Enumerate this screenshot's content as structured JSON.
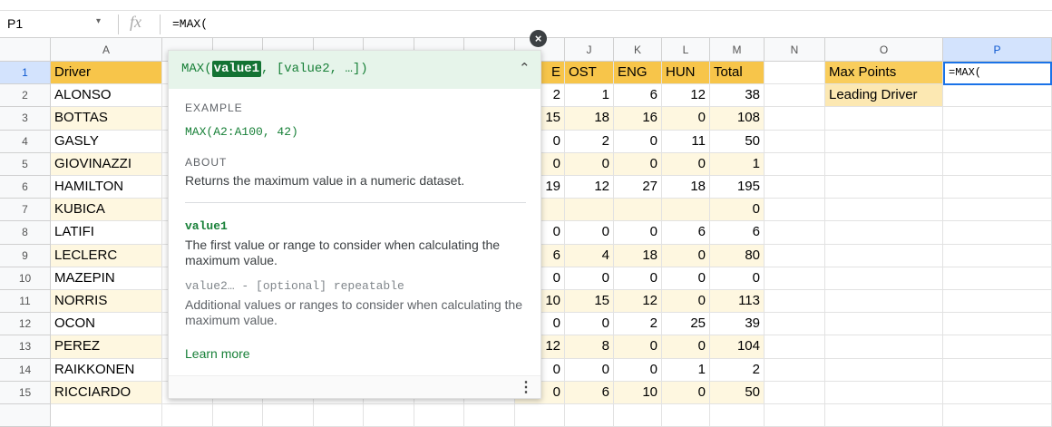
{
  "formula_bar": {
    "cell_ref": "P1",
    "formula": "=MAX("
  },
  "column_headers": [
    "A",
    "J",
    "K",
    "L",
    "M",
    "N",
    "O",
    "P"
  ],
  "row_numbers": [
    "1",
    "2",
    "3",
    "4",
    "5",
    "6",
    "7",
    "8",
    "9",
    "10",
    "11",
    "12",
    "13",
    "14",
    "15"
  ],
  "table": {
    "rows": [
      [
        "Driver",
        "E",
        "OST",
        "ENG",
        "HUN",
        "Total"
      ],
      [
        "ALONSO",
        2,
        1,
        6,
        12,
        38
      ],
      [
        "BOTTAS",
        15,
        18,
        16,
        0,
        108
      ],
      [
        "GASLY",
        0,
        2,
        0,
        11,
        50
      ],
      [
        "GIOVINAZZI",
        0,
        0,
        0,
        0,
        1
      ],
      [
        "HAMILTON",
        19,
        12,
        27,
        18,
        195
      ],
      [
        "KUBICA",
        null,
        null,
        null,
        null,
        0
      ],
      [
        "LATIFI",
        0,
        0,
        0,
        6,
        6
      ],
      [
        "LECLERC",
        6,
        4,
        18,
        0,
        80
      ],
      [
        "MAZEPIN",
        0,
        0,
        0,
        0,
        0
      ],
      [
        "NORRIS",
        10,
        15,
        12,
        0,
        113
      ],
      [
        "OCON",
        0,
        0,
        2,
        25,
        39
      ],
      [
        "PEREZ",
        12,
        8,
        0,
        0,
        104
      ],
      [
        "RAIKKONEN",
        0,
        0,
        0,
        1,
        2
      ],
      [
        "RICCIARDO",
        0,
        6,
        10,
        0,
        50
      ]
    ]
  },
  "side_cells": {
    "max_points_label": "Max Points",
    "leading_driver_label": "Leading Driver",
    "max_points_input": "=MAX("
  },
  "tooltip": {
    "signature": {
      "name": "MAX(",
      "active_arg": "value1",
      "rest": ", [value2, …])"
    },
    "example_label": "EXAMPLE",
    "example": "MAX(A2:A100, 42)",
    "about_label": "ABOUT",
    "about": "Returns the maximum value in a numeric dataset.",
    "args": [
      {
        "name": "value1",
        "description": "The first value or range to consider when calculating the maximum value."
      },
      {
        "name": "value2… - [optional] repeatable",
        "description": "Additional values or ranges to consider when calculating the maximum value."
      }
    ],
    "learn_more": "Learn more"
  }
}
